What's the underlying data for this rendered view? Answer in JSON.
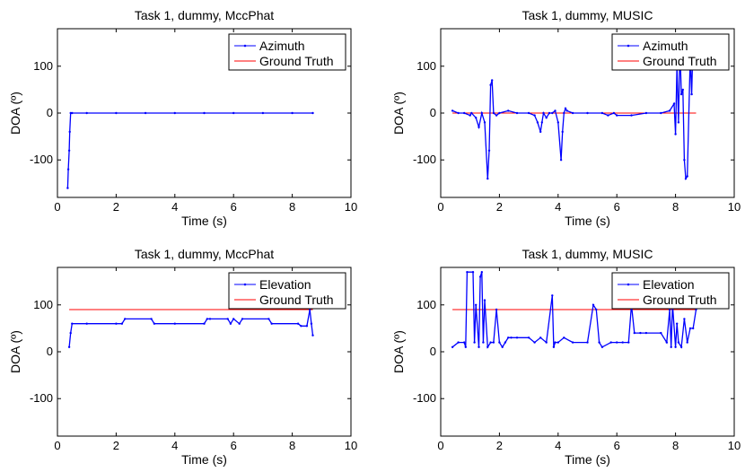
{
  "colors": {
    "series": "#0000ff",
    "truth": "#ff0000",
    "axis": "#000000",
    "background": "#ffffff"
  },
  "chart_data": [
    {
      "type": "line",
      "title": "Task 1, dummy, MccPhat",
      "xlabel": "Time (s)",
      "ylabel": "DOA (º)",
      "xlim": [
        0,
        10
      ],
      "ylim": [
        -180,
        180
      ],
      "xticks": [
        0,
        2,
        4,
        6,
        8,
        10
      ],
      "yticks": [
        -100,
        0,
        100
      ],
      "legend": "top-right",
      "series": [
        {
          "name": "Azimuth",
          "x": [
            0.35,
            0.37,
            0.4,
            0.42,
            0.45,
            0.5,
            1.0,
            2.0,
            3.0,
            4.0,
            5.0,
            6.0,
            7.0,
            8.0,
            8.7
          ],
          "y": [
            -160,
            -120,
            -80,
            -40,
            0,
            0,
            0,
            0,
            0,
            0,
            0,
            0,
            0,
            0,
            0
          ]
        },
        {
          "name": "Ground Truth",
          "x": [
            0.45,
            8.7
          ],
          "y": [
            0,
            0
          ]
        }
      ]
    },
    {
      "type": "line",
      "title": "Task 1, dummy, MUSIC",
      "xlabel": "Time (s)",
      "ylabel": "DOA (º)",
      "xlim": [
        0,
        10
      ],
      "ylim": [
        -180,
        180
      ],
      "xticks": [
        0,
        2,
        4,
        6,
        8,
        10
      ],
      "yticks": [
        -100,
        0,
        100
      ],
      "legend": "top-right",
      "series": [
        {
          "name": "Azimuth",
          "x": [
            0.4,
            0.6,
            0.8,
            1.0,
            1.05,
            1.2,
            1.3,
            1.4,
            1.5,
            1.6,
            1.65,
            1.7,
            1.75,
            1.8,
            1.9,
            2.0,
            2.3,
            2.6,
            3.0,
            3.2,
            3.3,
            3.4,
            3.45,
            3.5,
            3.6,
            3.7,
            3.8,
            3.9,
            4.0,
            4.1,
            4.15,
            4.2,
            4.25,
            4.3,
            4.5,
            5.0,
            5.5,
            5.7,
            5.9,
            6.0,
            6.5,
            7.0,
            7.5,
            7.8,
            7.95,
            8.0,
            8.05,
            8.1,
            8.15,
            8.2,
            8.25,
            8.3,
            8.35,
            8.4,
            8.5,
            8.55,
            8.6,
            8.7
          ],
          "y": [
            5,
            0,
            0,
            -5,
            0,
            -10,
            -30,
            0,
            -20,
            -140,
            -80,
            60,
            70,
            0,
            -5,
            0,
            5,
            0,
            0,
            -5,
            -20,
            -40,
            -20,
            0,
            -10,
            0,
            0,
            5,
            -20,
            -100,
            -40,
            0,
            10,
            5,
            0,
            0,
            0,
            -5,
            0,
            -5,
            -5,
            0,
            0,
            5,
            20,
            -45,
            100,
            -20,
            140,
            40,
            50,
            -100,
            -140,
            -135,
            120,
            40,
            160,
            160
          ]
        },
        {
          "name": "Ground Truth",
          "x": [
            0.4,
            8.7
          ],
          "y": [
            0,
            0
          ]
        }
      ]
    },
    {
      "type": "line",
      "title": "Task 1, dummy, MccPhat",
      "xlabel": "Time (s)",
      "ylabel": "DOA (º)",
      "xlim": [
        0,
        10
      ],
      "ylim": [
        -180,
        180
      ],
      "xticks": [
        0,
        2,
        4,
        6,
        8,
        10
      ],
      "yticks": [
        -100,
        0,
        100
      ],
      "legend": "top-right",
      "series": [
        {
          "name": "Elevation",
          "x": [
            0.4,
            0.45,
            0.5,
            1.0,
            2.0,
            2.2,
            2.3,
            3.2,
            3.3,
            4.0,
            5.0,
            5.1,
            5.2,
            5.8,
            5.9,
            6.0,
            6.2,
            6.3,
            7.2,
            7.3,
            8.2,
            8.3,
            8.5,
            8.6,
            8.65,
            8.7
          ],
          "y": [
            10,
            40,
            60,
            60,
            60,
            60,
            70,
            70,
            60,
            60,
            60,
            70,
            70,
            70,
            60,
            70,
            60,
            70,
            70,
            60,
            60,
            55,
            55,
            90,
            60,
            35
          ]
        },
        {
          "name": "Ground Truth",
          "x": [
            0.4,
            8.7
          ],
          "y": [
            90,
            90
          ]
        }
      ]
    },
    {
      "type": "line",
      "title": "Task 1, dummy, MUSIC",
      "xlabel": "Time (s)",
      "ylabel": "DOA (º)",
      "xlim": [
        0,
        10
      ],
      "ylim": [
        -180,
        180
      ],
      "xticks": [
        0,
        2,
        4,
        6,
        8,
        10
      ],
      "yticks": [
        -100,
        0,
        100
      ],
      "legend": "top-right",
      "series": [
        {
          "name": "Elevation",
          "x": [
            0.4,
            0.6,
            0.8,
            0.85,
            0.9,
            1.1,
            1.15,
            1.2,
            1.3,
            1.35,
            1.4,
            1.45,
            1.5,
            1.6,
            1.7,
            1.8,
            1.9,
            2.0,
            2.1,
            2.2,
            2.3,
            2.4,
            2.6,
            3.0,
            3.2,
            3.4,
            3.6,
            3.8,
            3.85,
            3.9,
            4.0,
            4.2,
            4.5,
            5.0,
            5.2,
            5.3,
            5.4,
            5.5,
            5.8,
            6.0,
            6.2,
            6.4,
            6.5,
            6.6,
            6.8,
            7.0,
            7.5,
            7.7,
            7.8,
            7.85,
            7.9,
            8.0,
            8.05,
            8.1,
            8.2,
            8.3,
            8.4,
            8.5,
            8.6,
            8.7
          ],
          "y": [
            10,
            20,
            20,
            10,
            170,
            170,
            20,
            100,
            10,
            160,
            170,
            20,
            110,
            10,
            20,
            20,
            90,
            20,
            10,
            20,
            30,
            30,
            30,
            30,
            20,
            30,
            20,
            120,
            10,
            20,
            20,
            30,
            20,
            20,
            100,
            90,
            20,
            10,
            20,
            20,
            20,
            20,
            100,
            40,
            40,
            40,
            40,
            20,
            90,
            10,
            100,
            10,
            60,
            20,
            10,
            70,
            20,
            50,
            50,
            90
          ]
        },
        {
          "name": "Ground Truth",
          "x": [
            0.4,
            8.7
          ],
          "y": [
            90,
            90
          ]
        }
      ]
    }
  ]
}
